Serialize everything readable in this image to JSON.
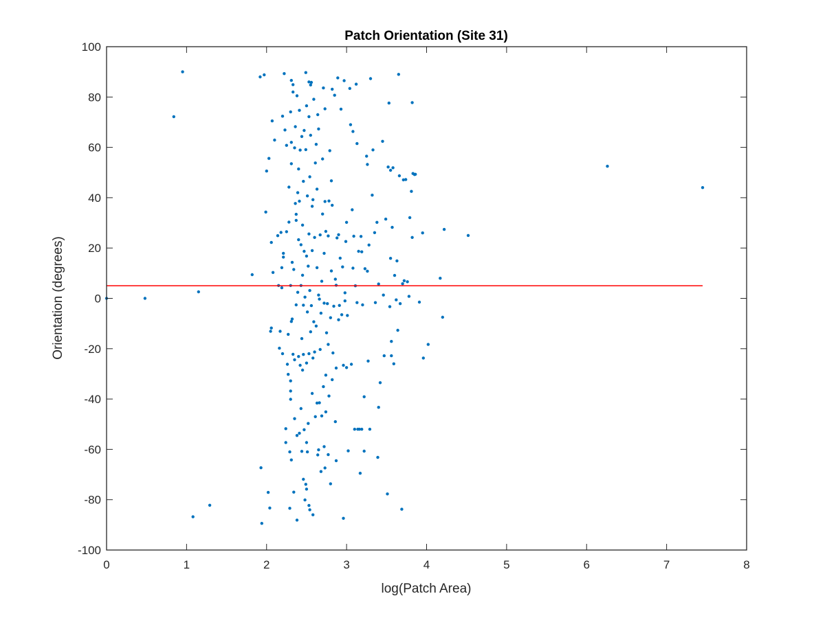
{
  "chart_data": {
    "type": "scatter",
    "title": "Patch Orientation (Site 31)",
    "xlabel": "log(Patch Area)",
    "ylabel": "Orientation (degrees)",
    "xlim": [
      0,
      8
    ],
    "ylim": [
      -100,
      100
    ],
    "xticks": [
      "0",
      "1",
      "2",
      "3",
      "4",
      "5",
      "6",
      "7",
      "8"
    ],
    "yticks": [
      "-100",
      "-80",
      "-60",
      "-40",
      "-20",
      "0",
      "20",
      "40",
      "60",
      "80",
      "100"
    ],
    "grid": false,
    "box": true,
    "marker_color": "#0072BD",
    "reference_line": {
      "x": [
        0,
        7.45
      ],
      "y": [
        5,
        5
      ],
      "color": "#FF0000"
    },
    "points": [
      [
        0,
        0
      ],
      [
        0.48,
        0
      ],
      [
        0.84,
        72.2
      ],
      [
        0.95,
        90
      ],
      [
        1.08,
        -86.8
      ],
      [
        1.15,
        2.6
      ],
      [
        1.29,
        -82.2
      ],
      [
        1.82,
        9.4
      ],
      [
        1.92,
        88
      ],
      [
        1.93,
        -67.3
      ],
      [
        1.94,
        -89.4
      ],
      [
        1.97,
        88.8
      ],
      [
        1.99,
        34.3
      ],
      [
        2.0,
        50.6
      ],
      [
        2.02,
        -77.1
      ],
      [
        2.03,
        55.6
      ],
      [
        2.04,
        -83.3
      ],
      [
        2.05,
        -13.1
      ],
      [
        2.06,
        -11.8
      ],
      [
        2.06,
        22.2
      ],
      [
        2.07,
        70.5
      ],
      [
        2.08,
        10.3
      ],
      [
        2.1,
        62.9
      ],
      [
        2.14,
        24.9
      ],
      [
        2.15,
        5.1
      ],
      [
        2.16,
        -19.8
      ],
      [
        2.17,
        -13.1
      ],
      [
        2.18,
        26.2
      ],
      [
        2.19,
        12.2
      ],
      [
        2.19,
        4.2
      ],
      [
        2.2,
        -22.0
      ],
      [
        2.2,
        72.4
      ],
      [
        2.21,
        17.9
      ],
      [
        2.21,
        16.4
      ],
      [
        2.22,
        89.3
      ],
      [
        2.23,
        66.9
      ],
      [
        2.24,
        -57.3
      ],
      [
        2.24,
        -51.8
      ],
      [
        2.25,
        60.8
      ],
      [
        2.25,
        26.5
      ],
      [
        2.26,
        -26.2
      ],
      [
        2.27,
        -14.3
      ],
      [
        2.27,
        -30.2
      ],
      [
        2.28,
        30.3
      ],
      [
        2.28,
        44.2
      ],
      [
        2.29,
        -83.4
      ],
      [
        2.29,
        -61.0
      ],
      [
        2.3,
        -32.8
      ],
      [
        2.3,
        -36.8
      ],
      [
        2.3,
        -40.1
      ],
      [
        2.3,
        5.1
      ],
      [
        2.3,
        74.1
      ],
      [
        2.31,
        62.0
      ],
      [
        2.31,
        53.5
      ],
      [
        2.31,
        86.6
      ],
      [
        2.31,
        -64.2
      ],
      [
        2.31,
        -9.2
      ],
      [
        2.32,
        -8.2
      ],
      [
        2.32,
        14.3
      ],
      [
        2.33,
        82.0
      ],
      [
        2.33,
        84.9
      ],
      [
        2.33,
        -22.2
      ],
      [
        2.34,
        -77.0
      ],
      [
        2.34,
        11.5
      ],
      [
        2.35,
        59.8
      ],
      [
        2.35,
        -24.4
      ],
      [
        2.35,
        -47.8
      ],
      [
        2.36,
        68.2
      ],
      [
        2.36,
        37.7
      ],
      [
        2.37,
        33.4
      ],
      [
        2.37,
        31.0
      ],
      [
        2.37,
        -2.6
      ],
      [
        2.38,
        80.5
      ],
      [
        2.38,
        -54.5
      ],
      [
        2.38,
        -88.1
      ],
      [
        2.39,
        42.0
      ],
      [
        2.39,
        2.4
      ],
      [
        2.4,
        23.3
      ],
      [
        2.4,
        51.4
      ],
      [
        2.4,
        -23.1
      ],
      [
        2.41,
        74.7
      ],
      [
        2.41,
        -53.6
      ],
      [
        2.41,
        38.6
      ],
      [
        2.42,
        58.9
      ],
      [
        2.42,
        -26.6
      ],
      [
        2.43,
        21.3
      ],
      [
        2.43,
        5.1
      ],
      [
        2.43,
        -43.8
      ],
      [
        2.44,
        -60.8
      ],
      [
        2.44,
        64.3
      ],
      [
        2.44,
        -16.0
      ],
      [
        2.45,
        29.1
      ],
      [
        2.45,
        -28.5
      ],
      [
        2.45,
        9.2
      ],
      [
        2.46,
        46.5
      ],
      [
        2.46,
        -71.9
      ],
      [
        2.46,
        -22.3
      ],
      [
        2.46,
        -2.7
      ],
      [
        2.47,
        66.7
      ],
      [
        2.47,
        -52.2
      ],
      [
        2.47,
        18.7
      ],
      [
        2.48,
        -80.1
      ],
      [
        2.48,
        0.5
      ],
      [
        2.49,
        89.7
      ],
      [
        2.49,
        -73.9
      ],
      [
        2.49,
        59.1
      ],
      [
        2.5,
        -57.3
      ],
      [
        2.5,
        -25.7
      ],
      [
        2.5,
        -75.8
      ],
      [
        2.5,
        16.8
      ],
      [
        2.5,
        76.5
      ],
      [
        2.51,
        -61.0
      ],
      [
        2.51,
        40.7
      ],
      [
        2.51,
        -5.4
      ],
      [
        2.52,
        12.8
      ],
      [
        2.52,
        -49.7
      ],
      [
        2.53,
        86.0
      ],
      [
        2.53,
        72.2
      ],
      [
        2.53,
        -82.3
      ],
      [
        2.53,
        -22.0
      ],
      [
        2.53,
        25.6
      ],
      [
        2.54,
        -84.0
      ],
      [
        2.54,
        48.3
      ],
      [
        2.54,
        3.1
      ],
      [
        2.55,
        84.8
      ],
      [
        2.55,
        -13.3
      ],
      [
        2.55,
        64.8
      ],
      [
        2.56,
        85.8
      ],
      [
        2.56,
        -2.9
      ],
      [
        2.57,
        36.6
      ],
      [
        2.57,
        -37.8
      ],
      [
        2.57,
        19.0
      ],
      [
        2.58,
        -86.0
      ],
      [
        2.58,
        -23.7
      ],
      [
        2.58,
        39.2
      ],
      [
        2.59,
        79.1
      ],
      [
        2.59,
        -9.3
      ],
      [
        2.6,
        24.2
      ],
      [
        2.6,
        -21.3
      ],
      [
        2.61,
        -47.0
      ],
      [
        2.61,
        53.8
      ],
      [
        2.62,
        61.2
      ],
      [
        2.62,
        -11.0
      ],
      [
        2.63,
        43.4
      ],
      [
        2.63,
        12.2
      ],
      [
        2.63,
        -41.6
      ],
      [
        2.64,
        73.0
      ],
      [
        2.64,
        -62.2
      ],
      [
        2.65,
        -60.2
      ],
      [
        2.65,
        1.3
      ],
      [
        2.65,
        67.3
      ],
      [
        2.66,
        -0.3
      ],
      [
        2.66,
        -41.5
      ],
      [
        2.67,
        25.2
      ],
      [
        2.67,
        -20.3
      ],
      [
        2.68,
        -5.9
      ],
      [
        2.68,
        -68.8
      ],
      [
        2.69,
        -46.7
      ],
      [
        2.69,
        6.8
      ],
      [
        2.7,
        55.4
      ],
      [
        2.7,
        33.5
      ],
      [
        2.71,
        83.6
      ],
      [
        2.71,
        -35.1
      ],
      [
        2.72,
        17.9
      ],
      [
        2.72,
        -1.9
      ],
      [
        2.72,
        -58.9
      ],
      [
        2.73,
        -67.4
      ],
      [
        2.73,
        75.3
      ],
      [
        2.73,
        38.5
      ],
      [
        2.74,
        -30.5
      ],
      [
        2.74,
        -45.1
      ],
      [
        2.74,
        26.6
      ],
      [
        2.75,
        -13.7
      ],
      [
        2.76,
        -2.1
      ],
      [
        2.77,
        -62.1
      ],
      [
        2.77,
        24.8
      ],
      [
        2.77,
        -18.3
      ],
      [
        2.78,
        38.7
      ],
      [
        2.78,
        -38.8
      ],
      [
        2.79,
        58.7
      ],
      [
        2.8,
        -73.7
      ],
      [
        2.8,
        -7.7
      ],
      [
        2.81,
        10.9
      ],
      [
        2.81,
        46.7
      ],
      [
        2.82,
        37.0
      ],
      [
        2.82,
        -32.3
      ],
      [
        2.82,
        83.1
      ],
      [
        2.83,
        -21.7
      ],
      [
        2.84,
        -3.1
      ],
      [
        2.85,
        80.7
      ],
      [
        2.86,
        7.6
      ],
      [
        2.86,
        -49.0
      ],
      [
        2.87,
        -64.5
      ],
      [
        2.87,
        -27.7
      ],
      [
        2.87,
        5.2
      ],
      [
        2.88,
        24.0
      ],
      [
        2.89,
        87.6
      ],
      [
        2.9,
        25.3
      ],
      [
        2.9,
        -8.5
      ],
      [
        2.91,
        -2.8
      ],
      [
        2.92,
        16.0
      ],
      [
        2.93,
        75.2
      ],
      [
        2.94,
        -6.5
      ],
      [
        2.95,
        12.5
      ],
      [
        2.96,
        -26.6
      ],
      [
        2.96,
        -87.4
      ],
      [
        2.97,
        86.5
      ],
      [
        2.98,
        -1.0
      ],
      [
        2.98,
        2.2
      ],
      [
        2.99,
        22.6
      ],
      [
        3.0,
        -27.5
      ],
      [
        3.0,
        30.2
      ],
      [
        3.01,
        -6.8
      ],
      [
        3.02,
        -60.6
      ],
      [
        3.04,
        83.4
      ],
      [
        3.05,
        69.0
      ],
      [
        3.06,
        -26.2
      ],
      [
        3.07,
        35.2
      ],
      [
        3.08,
        66.3
      ],
      [
        3.08,
        12.0
      ],
      [
        3.09,
        24.7
      ],
      [
        3.1,
        -52.0
      ],
      [
        3.11,
        5.0
      ],
      [
        3.12,
        85.1
      ],
      [
        3.13,
        61.5
      ],
      [
        3.13,
        -1.7
      ],
      [
        3.14,
        -52.0
      ],
      [
        3.15,
        18.7
      ],
      [
        3.16,
        -52.0
      ],
      [
        3.17,
        -69.5
      ],
      [
        3.18,
        24.6
      ],
      [
        3.19,
        -52.0
      ],
      [
        3.19,
        18.5
      ],
      [
        3.2,
        -2.6
      ],
      [
        3.22,
        -60.7
      ],
      [
        3.22,
        -39.1
      ],
      [
        3.23,
        11.8
      ],
      [
        3.25,
        56.5
      ],
      [
        3.26,
        53.2
      ],
      [
        3.26,
        10.8
      ],
      [
        3.27,
        -24.9
      ],
      [
        3.28,
        21.2
      ],
      [
        3.29,
        -52.0
      ],
      [
        3.3,
        87.3
      ],
      [
        3.32,
        41.0
      ],
      [
        3.33,
        59.0
      ],
      [
        3.35,
        26.1
      ],
      [
        3.36,
        -1.7
      ],
      [
        3.38,
        30.2
      ],
      [
        3.39,
        -63.2
      ],
      [
        3.4,
        -43.3
      ],
      [
        3.4,
        5.7
      ],
      [
        3.42,
        -33.5
      ],
      [
        3.45,
        62.4
      ],
      [
        3.46,
        1.3
      ],
      [
        3.47,
        -22.8
      ],
      [
        3.49,
        31.5
      ],
      [
        3.51,
        -77.7
      ],
      [
        3.52,
        52.2
      ],
      [
        3.53,
        77.6
      ],
      [
        3.54,
        -3.3
      ],
      [
        3.55,
        50.9
      ],
      [
        3.55,
        15.9
      ],
      [
        3.56,
        -22.8
      ],
      [
        3.56,
        -17.1
      ],
      [
        3.57,
        28.2
      ],
      [
        3.58,
        51.9
      ],
      [
        3.59,
        -26.0
      ],
      [
        3.6,
        9.1
      ],
      [
        3.62,
        -0.6
      ],
      [
        3.63,
        14.9
      ],
      [
        3.64,
        -12.7
      ],
      [
        3.65,
        89.0
      ],
      [
        3.66,
        48.7
      ],
      [
        3.67,
        -2.1
      ],
      [
        3.69,
        -83.8
      ],
      [
        3.7,
        5.8
      ],
      [
        3.71,
        47.1
      ],
      [
        3.72,
        7.0
      ],
      [
        3.74,
        47.2
      ],
      [
        3.76,
        6.6
      ],
      [
        3.78,
        0.8
      ],
      [
        3.79,
        32.1
      ],
      [
        3.81,
        42.5
      ],
      [
        3.82,
        77.8
      ],
      [
        3.82,
        24.2
      ],
      [
        3.83,
        49.6
      ],
      [
        3.85,
        49.2
      ],
      [
        3.86,
        49.3
      ],
      [
        3.91,
        -1.5
      ],
      [
        3.95,
        26.0
      ],
      [
        3.96,
        -23.7
      ],
      [
        4.02,
        -18.3
      ],
      [
        4.17,
        8.0
      ],
      [
        4.2,
        -7.5
      ],
      [
        4.22,
        27.4
      ],
      [
        4.52,
        25.0
      ],
      [
        6.26,
        52.5
      ],
      [
        7.45,
        44.0
      ]
    ]
  }
}
